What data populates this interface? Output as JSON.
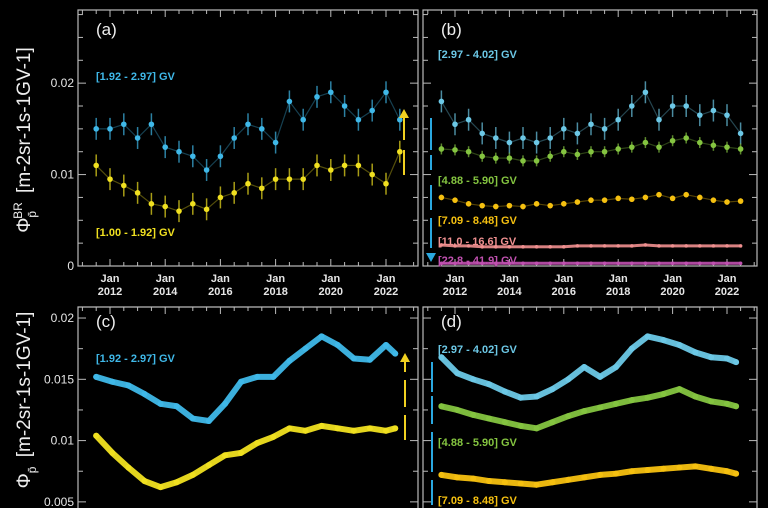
{
  "chart_data": [
    {
      "id": "a",
      "type": "scatter",
      "panel_label": "(a)",
      "ylabel_symbol": "Φ",
      "ylabel_sub": "p̄",
      "ylabel_sup": "BR",
      "ylabel_unit": "[m-2sr-1s-1GV-1]",
      "ylim": [
        0,
        0.028
      ],
      "yticks": [
        "0",
        "0.01",
        "0.02"
      ],
      "ytick_values": [
        0,
        0.01,
        0.02
      ],
      "xtick_labels": [
        [
          "Jan",
          "2012"
        ],
        [
          "Jan",
          "2014"
        ],
        [
          "Jan",
          "2016"
        ],
        [
          "Jan",
          "2018"
        ],
        [
          "Jan",
          "2020"
        ],
        [
          "Jan",
          "2022"
        ]
      ],
      "xtick_years": [
        2012,
        2014,
        2016,
        2018,
        2020,
        2022
      ],
      "x": [
        "2011-07",
        "2012-01",
        "2012-07",
        "2013-01",
        "2013-07",
        "2014-01",
        "2014-07",
        "2015-01",
        "2015-07",
        "2016-01",
        "2016-07",
        "2017-01",
        "2017-07",
        "2018-01",
        "2018-07",
        "2019-01",
        "2019-07",
        "2020-01",
        "2020-07",
        "2021-01",
        "2021-07",
        "2022-01",
        "2022-07"
      ],
      "series": [
        {
          "name": "[1.92 - 2.97] GV",
          "color": "#3fb8e8",
          "error": 0.0012,
          "values": [
            0.015,
            0.015,
            0.0155,
            0.014,
            0.0155,
            0.013,
            0.0125,
            0.012,
            0.0105,
            0.012,
            0.014,
            0.0155,
            0.015,
            0.0135,
            0.018,
            0.016,
            0.0185,
            0.019,
            0.0175,
            0.016,
            0.017,
            0.019,
            0.016
          ]
        },
        {
          "name": "[1.00 - 1.92] GV",
          "color": "#f0e020",
          "error": 0.0012,
          "values": [
            0.011,
            0.0095,
            0.0088,
            0.008,
            0.0068,
            0.0065,
            0.006,
            0.0068,
            0.0062,
            0.0075,
            0.008,
            0.009,
            0.0085,
            0.0095,
            0.0095,
            0.0095,
            0.011,
            0.0105,
            0.011,
            0.011,
            0.01,
            0.009,
            0.0125
          ]
        }
      ]
    },
    {
      "id": "b",
      "type": "scatter",
      "panel_label": "(b)",
      "ylim": [
        0,
        0.028
      ],
      "ytick_values": [
        0,
        0.01,
        0.02
      ],
      "xtick_labels": [
        [
          "Jan",
          "2012"
        ],
        [
          "Jan",
          "2014"
        ],
        [
          "Jan",
          "2016"
        ],
        [
          "Jan",
          "2018"
        ],
        [
          "Jan",
          "2020"
        ],
        [
          "Jan",
          "2022"
        ]
      ],
      "xtick_years": [
        2012,
        2014,
        2016,
        2018,
        2020,
        2022
      ],
      "x": [
        "2011-07",
        "2012-01",
        "2012-07",
        "2013-01",
        "2013-07",
        "2014-01",
        "2014-07",
        "2015-01",
        "2015-07",
        "2016-01",
        "2016-07",
        "2017-01",
        "2017-07",
        "2018-01",
        "2018-07",
        "2019-01",
        "2019-07",
        "2020-01",
        "2020-07",
        "2021-01",
        "2021-07",
        "2022-01",
        "2022-07"
      ],
      "series": [
        {
          "name": "[2.97 - 4.02] GV",
          "color": "#6cc8e6",
          "error": 0.0012,
          "values": [
            0.018,
            0.0155,
            0.016,
            0.0145,
            0.014,
            0.0135,
            0.014,
            0.0135,
            0.014,
            0.015,
            0.0145,
            0.0155,
            0.015,
            0.016,
            0.0175,
            0.019,
            0.016,
            0.0175,
            0.0175,
            0.0165,
            0.017,
            0.0165,
            0.0145
          ]
        },
        {
          "name": "[4.88 - 5.90] GV",
          "color": "#84c440",
          "error": 0.0006,
          "values": [
            0.0128,
            0.0127,
            0.0125,
            0.012,
            0.0118,
            0.0118,
            0.0115,
            0.0115,
            0.012,
            0.0125,
            0.0122,
            0.0125,
            0.0125,
            0.0128,
            0.013,
            0.0135,
            0.013,
            0.0137,
            0.014,
            0.0135,
            0.0132,
            0.013,
            0.0128
          ]
        },
        {
          "name": "[7.09 - 8.48] GV",
          "color": "#f5c010",
          "error": 0.0003,
          "values": [
            0.0075,
            0.0072,
            0.0068,
            0.0066,
            0.0065,
            0.0066,
            0.0065,
            0.0068,
            0.0066,
            0.0068,
            0.007,
            0.0072,
            0.0072,
            0.0074,
            0.0073,
            0.0075,
            0.0078,
            0.0074,
            0.0078,
            0.0075,
            0.0072,
            0.007,
            0.0071
          ]
        },
        {
          "name": "[11.0 - 16.6] GV",
          "color": "#f09090",
          "error": 0.0001,
          "values": [
            0.0023,
            0.0022,
            0.0022,
            0.0021,
            0.0021,
            0.0021,
            0.0021,
            0.0021,
            0.0021,
            0.0021,
            0.0022,
            0.0022,
            0.0022,
            0.0022,
            0.0022,
            0.0023,
            0.0022,
            0.0022,
            0.0022,
            0.0022,
            0.0022,
            0.0022,
            0.0022
          ]
        },
        {
          "name": "[22.8 - 41.9] GV",
          "color": "#c050b0",
          "error": 0.0001,
          "values": [
            0.0003,
            0.0003,
            0.0003,
            0.0003,
            0.0003,
            0.0003,
            0.0003,
            0.0003,
            0.0003,
            0.0003,
            0.0003,
            0.0003,
            0.0003,
            0.0003,
            0.0003,
            0.0003,
            0.0003,
            0.0003,
            0.0003,
            0.0003,
            0.0003,
            0.0003,
            0.0003
          ]
        }
      ]
    },
    {
      "id": "c",
      "type": "line",
      "panel_label": "(c)",
      "ylabel_symbol": "Φ",
      "ylabel_sub": "p̄",
      "ylabel_unit": "[m-2sr-1s-1GV-1]",
      "ylim": [
        0.0045,
        0.0209
      ],
      "yticks": [
        "0.005",
        "0.01",
        "0.015",
        "0.02"
      ],
      "ytick_values": [
        0.005,
        0.01,
        0.015,
        0.02
      ],
      "x": [
        "2011-07",
        "2012-02",
        "2012-09",
        "2013-04",
        "2013-11",
        "2014-06",
        "2015-01",
        "2015-08",
        "2016-03",
        "2016-10",
        "2017-05",
        "2017-12",
        "2018-07",
        "2019-02",
        "2019-09",
        "2020-04",
        "2020-11",
        "2021-06",
        "2022-01",
        "2022-05"
      ],
      "series": [
        {
          "name": "[1.92 - 2.97] GV",
          "color": "#3fb8e8",
          "values": [
            0.0152,
            0.0148,
            0.0145,
            0.0138,
            0.013,
            0.0128,
            0.0118,
            0.0116,
            0.013,
            0.0148,
            0.0152,
            0.0152,
            0.0165,
            0.0175,
            0.0185,
            0.0178,
            0.0167,
            0.0166,
            0.0178,
            0.0171
          ]
        },
        {
          "name": "",
          "color": "#f0e020",
          "values": [
            0.0104,
            0.009,
            0.0078,
            0.0067,
            0.0062,
            0.0066,
            0.0072,
            0.008,
            0.0088,
            0.009,
            0.0098,
            0.0103,
            0.011,
            0.0108,
            0.0112,
            0.011,
            0.0108,
            0.011,
            0.0108,
            0.011
          ]
        }
      ]
    },
    {
      "id": "d",
      "type": "line",
      "panel_label": "(d)",
      "ylim": [
        0.0045,
        0.0209
      ],
      "ytick_values": [
        0.005,
        0.01,
        0.015,
        0.02
      ],
      "x": [
        "2011-07",
        "2012-02",
        "2012-09",
        "2013-04",
        "2013-11",
        "2014-06",
        "2015-01",
        "2015-08",
        "2016-03",
        "2016-10",
        "2017-05",
        "2017-12",
        "2018-07",
        "2019-02",
        "2019-09",
        "2020-04",
        "2020-11",
        "2021-06",
        "2022-01",
        "2022-05"
      ],
      "series": [
        {
          "name": "[2.97 - 4.02] GV",
          "color": "#6cc8e6",
          "values": [
            0.0168,
            0.0155,
            0.015,
            0.0146,
            0.014,
            0.0135,
            0.0136,
            0.0142,
            0.015,
            0.016,
            0.0152,
            0.016,
            0.0175,
            0.0185,
            0.0182,
            0.0178,
            0.0172,
            0.0168,
            0.0167,
            0.0164
          ]
        },
        {
          "name": "[4.88 - 5.90] GV",
          "color": "#84c440",
          "values": [
            0.0128,
            0.0125,
            0.0121,
            0.0118,
            0.0115,
            0.0112,
            0.011,
            0.0115,
            0.012,
            0.0124,
            0.0127,
            0.013,
            0.0133,
            0.0135,
            0.0138,
            0.0142,
            0.0136,
            0.0132,
            0.013,
            0.0128
          ]
        },
        {
          "name": "[7.09 - 8.48] GV",
          "color": "#f5c010",
          "values": [
            0.0072,
            0.007,
            0.0069,
            0.0067,
            0.0066,
            0.0065,
            0.0064,
            0.0066,
            0.0068,
            0.007,
            0.0072,
            0.0073,
            0.0075,
            0.0076,
            0.0077,
            0.0078,
            0.0079,
            0.0077,
            0.0075,
            0.0073
          ]
        }
      ]
    }
  ]
}
